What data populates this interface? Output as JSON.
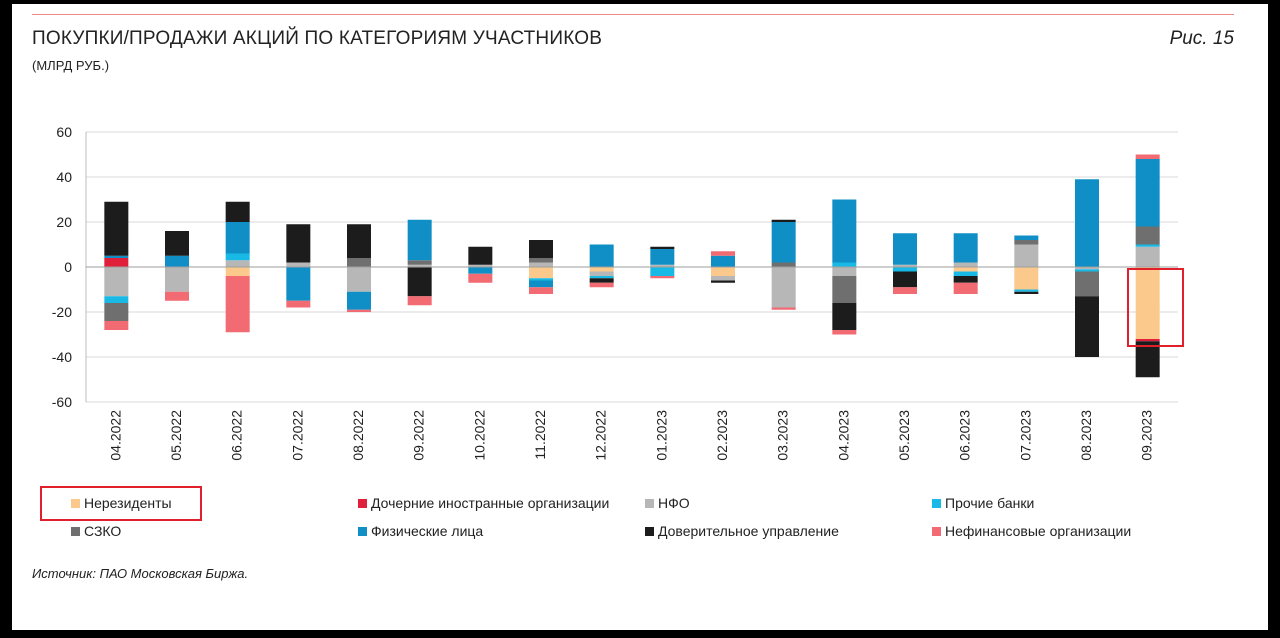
{
  "figure_label": "Рис. 15",
  "source": "Источник: ПАО Московская Биржа.",
  "chart_data": {
    "type": "bar",
    "stacked": true,
    "title": "ПОКУПКИ/ПРОДАЖИ АКЦИЙ ПО КАТЕГОРИЯМ УЧАСТНИКОВ",
    "subtitle": "(МЛРД РУБ.)",
    "xlabel": "",
    "ylabel": "",
    "ylim": [
      -60,
      60
    ],
    "yticks": [
      60,
      40,
      20,
      0,
      -20,
      -40,
      -60
    ],
    "grid": true,
    "legend_position": "bottom",
    "categories": [
      "04.2022",
      "05.2022",
      "06.2022",
      "07.2022",
      "08.2022",
      "09.2022",
      "10.2022",
      "11.2022",
      "12.2022",
      "01.2023",
      "02.2023",
      "03.2023",
      "04.2023",
      "05.2023",
      "06.2023",
      "07.2023",
      "08.2023",
      "09.2023"
    ],
    "series": [
      {
        "name": "Нерезиденты",
        "color": "#fbc98c",
        "values": [
          0,
          0,
          -4,
          0,
          0,
          0,
          0,
          -5,
          -2,
          0,
          -4,
          0,
          0,
          0,
          -2,
          -10,
          0,
          -32
        ]
      },
      {
        "name": "Дочерние иностранные организации",
        "color": "#e0203a",
        "values": [
          4,
          0,
          0,
          0,
          0,
          0,
          0,
          0,
          0,
          0,
          0,
          0,
          0,
          0,
          0,
          0,
          0,
          -1
        ]
      },
      {
        "name": "НФО",
        "color": "#b7b7b7",
        "values": [
          -13,
          -11,
          3,
          2,
          -11,
          1,
          1,
          2,
          -2,
          1,
          -2,
          -18,
          -4,
          1,
          2,
          10,
          -1,
          9
        ]
      },
      {
        "name": "Прочие банки",
        "color": "#19b9e6",
        "values": [
          -3,
          0,
          3,
          0,
          0,
          0,
          0,
          -1,
          -1,
          -4,
          0,
          0,
          2,
          -2,
          -2,
          -1,
          -1,
          1
        ]
      },
      {
        "name": "СЗКО",
        "color": "#6f6f6f",
        "values": [
          -8,
          0,
          0,
          0,
          4,
          2,
          0,
          2,
          0,
          0,
          0,
          2,
          -12,
          0,
          0,
          2,
          -11,
          8
        ]
      },
      {
        "name": "Физические лица",
        "color": "#0f8fc5",
        "values": [
          1,
          5,
          14,
          -15,
          -8,
          18,
          -3,
          -3,
          10,
          7,
          5,
          18,
          28,
          14,
          13,
          2,
          39,
          30
        ]
      },
      {
        "name": "Доверительное управление",
        "color": "#1c1c1c",
        "values": [
          24,
          11,
          9,
          17,
          15,
          -13,
          8,
          8,
          -2,
          1,
          -1,
          1,
          -12,
          -7,
          -3,
          -1,
          -27,
          -16
        ]
      },
      {
        "name": "Нефинансовые организации",
        "color": "#f26a72",
        "values": [
          -4,
          -4,
          -25,
          -3,
          -1,
          -4,
          -4,
          -3,
          -2,
          -1,
          2,
          -1,
          -2,
          -3,
          -5,
          0,
          0,
          2
        ]
      }
    ]
  }
}
